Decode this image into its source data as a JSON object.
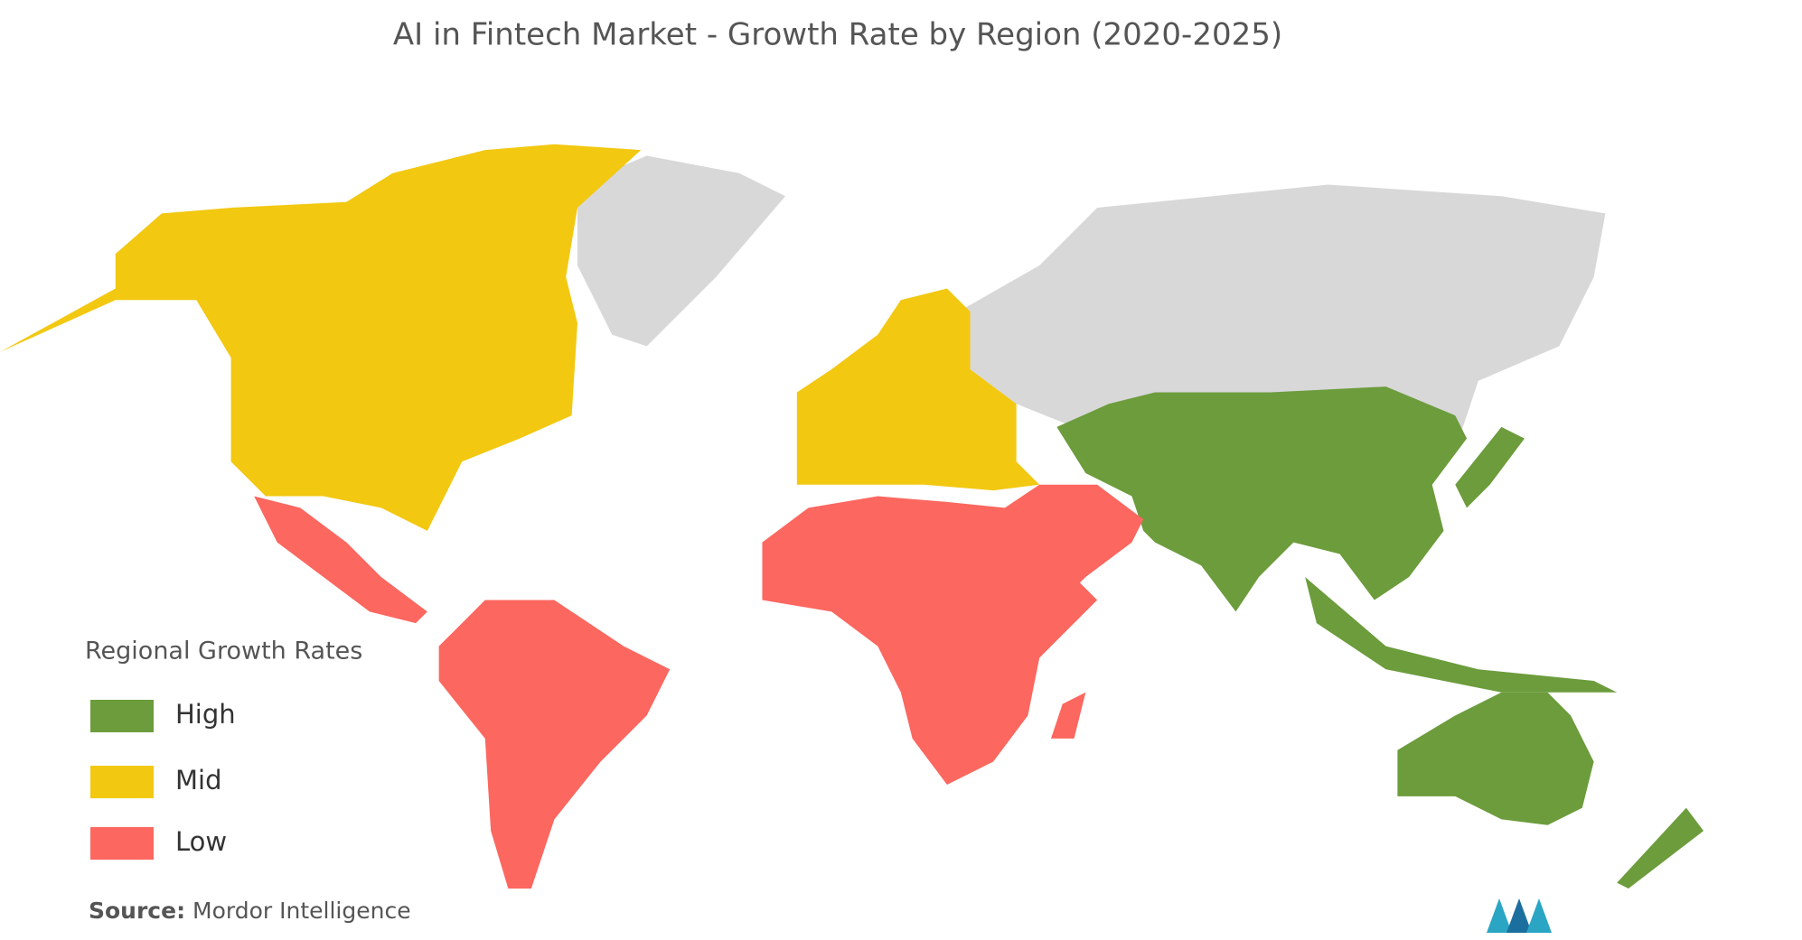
{
  "title": "AI in Fintech Market - Growth Rate by Region (2020-2025)",
  "legend": {
    "title": "Regional Growth Rates",
    "items": [
      {
        "label": "High",
        "color": "#6c9c3c"
      },
      {
        "label": "Mid",
        "color": "#f2c811"
      },
      {
        "label": "Low",
        "color": "#fc675f"
      }
    ]
  },
  "source": {
    "label": "Source:",
    "text": "Mordor Intelligence"
  }
}
